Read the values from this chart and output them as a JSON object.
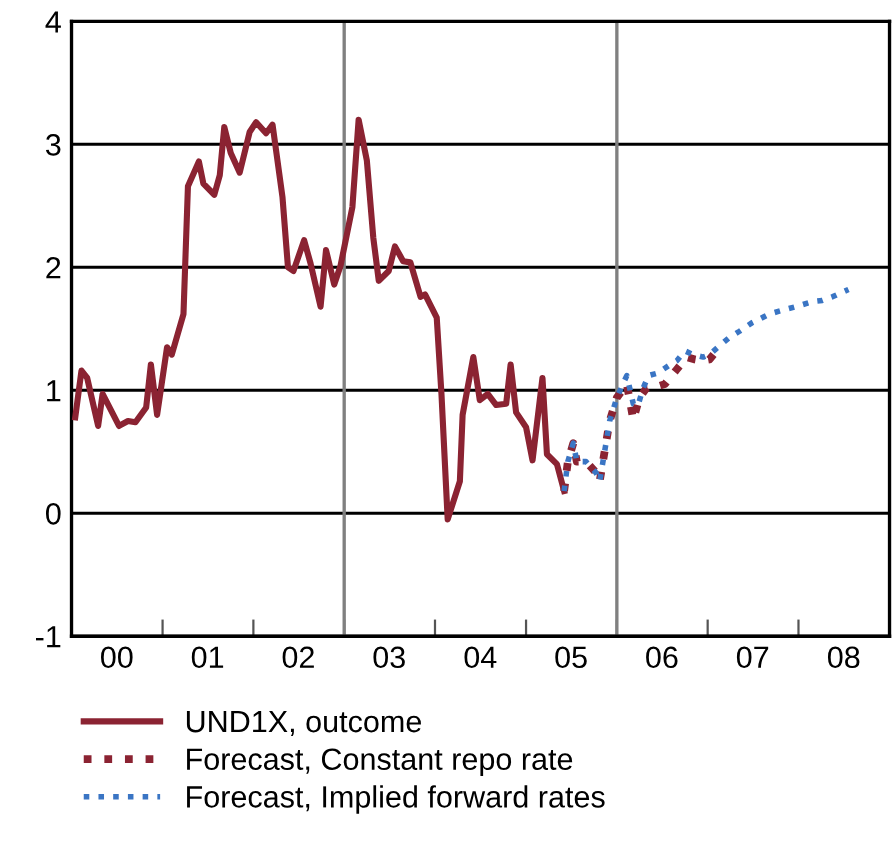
{
  "chart_data": {
    "type": "line",
    "xlim": [
      "2000-01-01",
      "2009-01-01"
    ],
    "ylim": [
      -1,
      4
    ],
    "yticks": [
      -1,
      0,
      1,
      2,
      3,
      4
    ],
    "xticks": [
      {
        "value": "2001-01-01",
        "label": null
      },
      {
        "value": "2002-01-01",
        "label": null
      },
      {
        "value": "2003-01-01",
        "label": null
      },
      {
        "value": "2004-01-01",
        "label": null
      },
      {
        "value": "2005-01-01",
        "label": null
      },
      {
        "value": "2006-01-01",
        "label": null
      },
      {
        "value": "2007-01-01",
        "label": null
      },
      {
        "value": "2008-01-01",
        "label": null
      },
      {
        "value": "2000-07-01",
        "label": "00"
      },
      {
        "value": "2001-07-01",
        "label": "01"
      },
      {
        "value": "2002-07-01",
        "label": "02"
      },
      {
        "value": "2003-07-01",
        "label": "03"
      },
      {
        "value": "2004-07-01",
        "label": "04"
      },
      {
        "value": "2005-07-01",
        "label": "05"
      },
      {
        "value": "2006-07-01",
        "label": "06"
      },
      {
        "value": "2007-07-01",
        "label": "07"
      },
      {
        "value": "2008-07-01",
        "label": "08"
      }
    ],
    "grid": "y",
    "legend": "bottom left",
    "ref_lines": [
      {
        "axis": "x",
        "value": "2003-01-01",
        "color": "#808080"
      },
      {
        "axis": "x",
        "value": "2006-01-01",
        "color": "#808080"
      }
    ],
    "series": [
      {
        "name": "UND1X, outcome",
        "color": "#8b2332",
        "line_style": "solid",
        "x": [
          "2000-01-16",
          "2000-02-10",
          "2000-03-04",
          "2000-04-17",
          "2000-05-05",
          "2000-07-10",
          "2000-08-15",
          "2000-09-14",
          "2000-10-27",
          "2000-11-15",
          "2000-12-10",
          "2001-01-19",
          "2001-02-07",
          "2001-03-26",
          "2001-04-13",
          "2001-05-27",
          "2001-06-14",
          "2001-07-28",
          "2001-08-19",
          "2001-09-06",
          "2001-10-02",
          "2001-11-07",
          "2001-12-17",
          "2002-01-12",
          "2002-02-21",
          "2002-03-19",
          "2002-04-28",
          "2002-05-20",
          "2002-06-11",
          "2002-07-24",
          "2002-08-19",
          "2002-09-28",
          "2002-10-20",
          "2002-11-22",
          "2002-12-17",
          "2003-02-03",
          "2003-02-28",
          "2003-04-02",
          "2003-04-28",
          "2003-05-20",
          "2003-06-29",
          "2003-07-24",
          "2003-08-26",
          "2003-09-24",
          "2003-11-04",
          "2003-11-22",
          "2004-01-08",
          "2004-01-27",
          "2004-02-21",
          "2004-04-10",
          "2004-04-21",
          "2004-06-03",
          "2004-06-29",
          "2004-07-31",
          "2004-09-03",
          "2004-10-13",
          "2004-10-31",
          "2004-11-22",
          "2005-01-01",
          "2005-01-27",
          "2005-03-08",
          "2005-03-26",
          "2005-05-05",
          "2005-06-03"
        ],
        "values": [
          0.78,
          1.16,
          1.1,
          0.71,
          0.97,
          0.71,
          0.75,
          0.74,
          0.86,
          1.21,
          0.8,
          1.35,
          1.29,
          1.62,
          2.66,
          2.86,
          2.68,
          2.59,
          2.75,
          3.14,
          2.93,
          2.77,
          3.1,
          3.18,
          3.09,
          3.16,
          2.57,
          2.0,
          1.97,
          2.22,
          2.03,
          1.68,
          2.14,
          1.86,
          2.01,
          2.49,
          3.2,
          2.87,
          2.24,
          1.89,
          1.97,
          2.17,
          2.05,
          2.04,
          1.76,
          1.78,
          1.59,
          0.97,
          -0.05,
          0.26,
          0.8,
          1.27,
          0.92,
          0.97,
          0.88,
          0.89,
          1.21,
          0.82,
          0.7,
          0.43,
          1.1,
          0.48,
          0.4,
          0.18
        ]
      },
      {
        "name": "Forecast, Constant repo rate",
        "color": "#8b2332",
        "line_style": "dotted",
        "x": [
          "2005-06-03",
          "2005-06-18",
          "2005-07-10",
          "2005-07-24",
          "2005-08-30",
          "2005-10-09",
          "2005-10-24",
          "2005-11-11",
          "2005-12-03",
          "2006-01-01",
          "2006-02-10",
          "2006-03-08",
          "2006-04-02",
          "2006-05-01",
          "2006-06-11",
          "2006-07-13",
          "2006-08-30",
          "2006-10-09",
          "2006-11-11",
          "2006-12-10",
          "2007-01-08",
          "2007-02-17"
        ],
        "values": [
          0.18,
          0.42,
          0.57,
          0.42,
          0.42,
          0.33,
          0.26,
          0.48,
          0.75,
          0.94,
          1.05,
          0.76,
          0.94,
          1.02,
          1.03,
          1.05,
          1.17,
          1.27,
          1.25,
          1.24,
          1.25,
          1.35
        ]
      },
      {
        "name": "Forecast, Implied forward rates",
        "color": "#3a75c4",
        "line_style": "dotted",
        "x": [
          "2005-06-03",
          "2005-06-18",
          "2005-07-10",
          "2005-07-24",
          "2005-08-30",
          "2005-10-09",
          "2005-10-24",
          "2005-11-11",
          "2005-12-03",
          "2006-01-01",
          "2006-02-10",
          "2006-03-08",
          "2006-03-26",
          "2006-04-17",
          "2006-05-09",
          "2006-06-14",
          "2006-07-28",
          "2006-08-30",
          "2006-10-02",
          "2006-11-04",
          "2006-12-14",
          "2007-01-08",
          "2007-02-17",
          "2007-03-30",
          "2007-05-09",
          "2007-06-29",
          "2007-09-06",
          "2007-10-27",
          "2007-12-21",
          "2008-02-25",
          "2008-04-06",
          "2008-05-16",
          "2008-07-20"
        ],
        "values": [
          0.18,
          0.42,
          0.57,
          0.42,
          0.42,
          0.33,
          0.26,
          0.48,
          0.75,
          0.94,
          1.12,
          0.89,
          0.87,
          1.02,
          1.12,
          1.14,
          1.2,
          1.24,
          1.32,
          1.29,
          1.27,
          1.29,
          1.36,
          1.43,
          1.48,
          1.55,
          1.62,
          1.65,
          1.68,
          1.72,
          1.73,
          1.76,
          1.82
        ]
      }
    ]
  }
}
